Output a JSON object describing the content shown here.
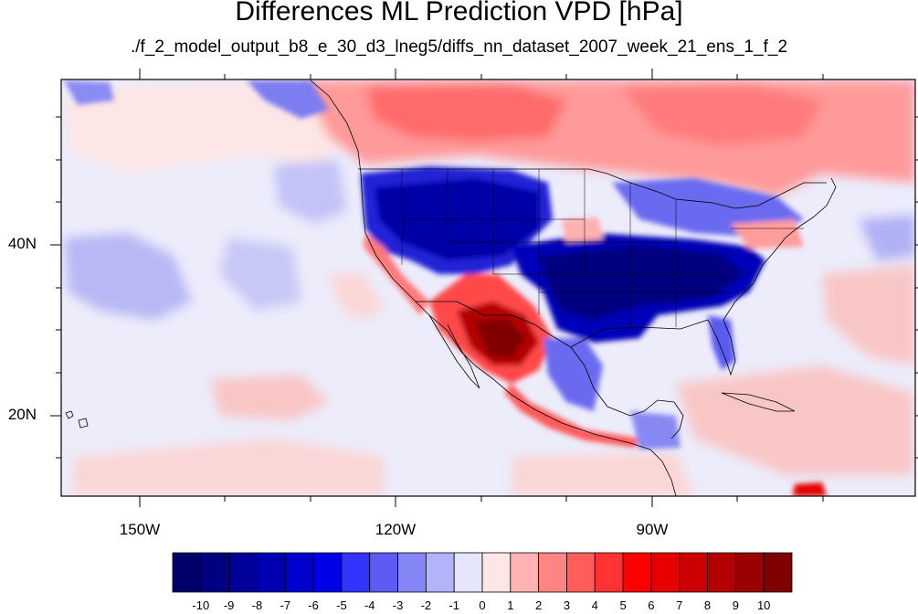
{
  "title": "Differences ML Prediction VPD [hPa]",
  "subtitle": "./f_2_model_output_b8_e_30_d3_lneg5/diffs_nn_dataset_2007_week_21_ens_1_f_2",
  "map": {
    "projection": "cylindrical equidistant",
    "lon_range": [
      -159.5,
      -60
    ],
    "lat_range": [
      10.5,
      59.5
    ],
    "lat_labels": [
      "40N",
      "20N"
    ],
    "lon_labels": [
      "150W",
      "120W",
      "90W"
    ]
  },
  "colorbar": {
    "labels": [
      "-10",
      "-9",
      "-8",
      "-7",
      "-6",
      "-5",
      "-4",
      "-3",
      "-2",
      "-1",
      "0",
      "1",
      "2",
      "3",
      "4",
      "5",
      "6",
      "7",
      "8",
      "9",
      "10"
    ],
    "colors": [
      "#00006b",
      "#000080",
      "#000099",
      "#0000b3",
      "#0000cc",
      "#0000e6",
      "#3333ff",
      "#5c5cf5",
      "#8585f5",
      "#b3b3fa",
      "#e6e6fa",
      "#ffe6e6",
      "#ffb3b3",
      "#ff8585",
      "#ff5c5c",
      "#ff3333",
      "#ff0000",
      "#e60000",
      "#cc0000",
      "#b30000",
      "#990000",
      "#800000"
    ]
  }
}
